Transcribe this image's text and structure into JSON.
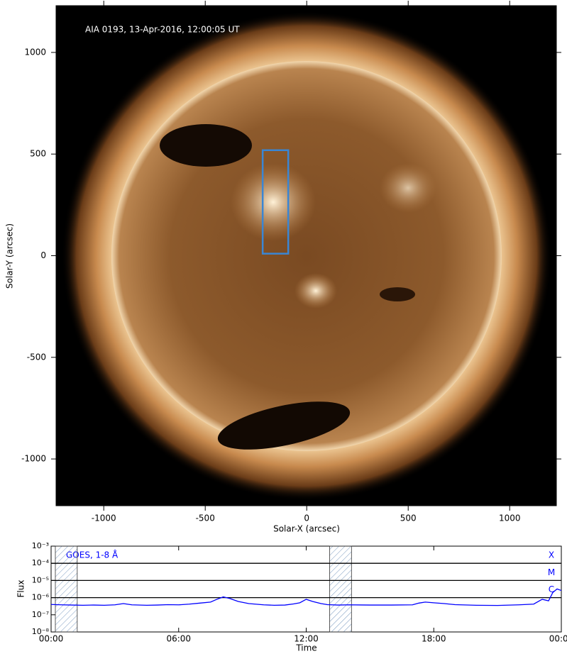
{
  "chart_data": [
    {
      "type": "image",
      "title": "AIA 0193, 13-Apr-2016, 12:00:05 UT",
      "xlabel": "Solar-X (arcsec)",
      "ylabel": "Solar-Y (arcsec)",
      "xlim": [
        -1235,
        1230
      ],
      "ylim": [
        -1230,
        1230
      ],
      "xticks": [
        -1000,
        -500,
        0,
        500,
        1000
      ],
      "yticks": [
        -1000,
        -500,
        0,
        500,
        1000
      ],
      "box": {
        "x": [
          -217,
          -91
        ],
        "y": [
          10,
          519
        ],
        "color": "#3a86d4"
      }
    },
    {
      "type": "line",
      "xlabel": "Time",
      "ylabel": "Flux",
      "log_y": true,
      "xlim": [
        0,
        24
      ],
      "ylim": [
        1e-08,
        0.001
      ],
      "xticks": [
        {
          "value": 0,
          "label": "00:00"
        },
        {
          "value": 6,
          "label": "06:00"
        },
        {
          "value": 12,
          "label": "12:00"
        },
        {
          "value": 18,
          "label": "18:00"
        },
        {
          "value": 24,
          "label": "00:00"
        }
      ],
      "yticks": [
        {
          "value": 1e-08,
          "label": "10⁻⁸"
        },
        {
          "value": 1e-07,
          "label": "10⁻⁷"
        },
        {
          "value": 1e-06,
          "label": "10⁻⁶"
        },
        {
          "value": 1e-05,
          "label": "10⁻⁵"
        },
        {
          "value": 0.0001,
          "label": "10⁻⁴"
        },
        {
          "value": 0.001,
          "label": "10⁻³"
        }
      ],
      "reference_lines": [
        {
          "value": 0.0001,
          "label": "X"
        },
        {
          "value": 1e-05,
          "label": "M"
        },
        {
          "value": 1e-06,
          "label": "C"
        }
      ],
      "shaded_intervals": [
        [
          0.2,
          1.23
        ],
        [
          13.1,
          14.13
        ]
      ],
      "series": [
        {
          "name": "GOES, 1-8 Å",
          "color": "#0000ff",
          "x": [
            0,
            0.5,
            1,
            1.5,
            2,
            2.5,
            3,
            3.4,
            3.8,
            4.5,
            5,
            5.5,
            6,
            6.5,
            7,
            7.5,
            7.8,
            8.1,
            8.4,
            8.8,
            9.3,
            10,
            10.5,
            11,
            11.4,
            11.7,
            12,
            12.3,
            12.7,
            13,
            13.5,
            14,
            15,
            16,
            17,
            17.3,
            17.6,
            18,
            18.5,
            19,
            20,
            21,
            22,
            22.7,
            23.1,
            23.4,
            23.6,
            23.8,
            24
          ],
          "values": [
            4e-07,
            3.8e-07,
            3.7e-07,
            3.6e-07,
            3.7e-07,
            3.6e-07,
            3.8e-07,
            4.5e-07,
            3.8e-07,
            3.6e-07,
            3.7e-07,
            3.9e-07,
            3.8e-07,
            4.2e-07,
            4.8e-07,
            5.5e-07,
            8e-07,
            1.1e-06,
            9e-07,
            6e-07,
            4.5e-07,
            3.8e-07,
            3.6e-07,
            3.7e-07,
            4.3e-07,
            5e-07,
            8e-07,
            6e-07,
            4.5e-07,
            3.9e-07,
            3.7e-07,
            3.8e-07,
            3.7e-07,
            3.7e-07,
            3.8e-07,
            4.8e-07,
            5.5e-07,
            5e-07,
            4.5e-07,
            3.9e-07,
            3.6e-07,
            3.5e-07,
            3.8e-07,
            4.2e-07,
            8e-07,
            6.5e-07,
            2e-06,
            3.2e-06,
            2.6e-06
          ]
        }
      ]
    }
  ]
}
